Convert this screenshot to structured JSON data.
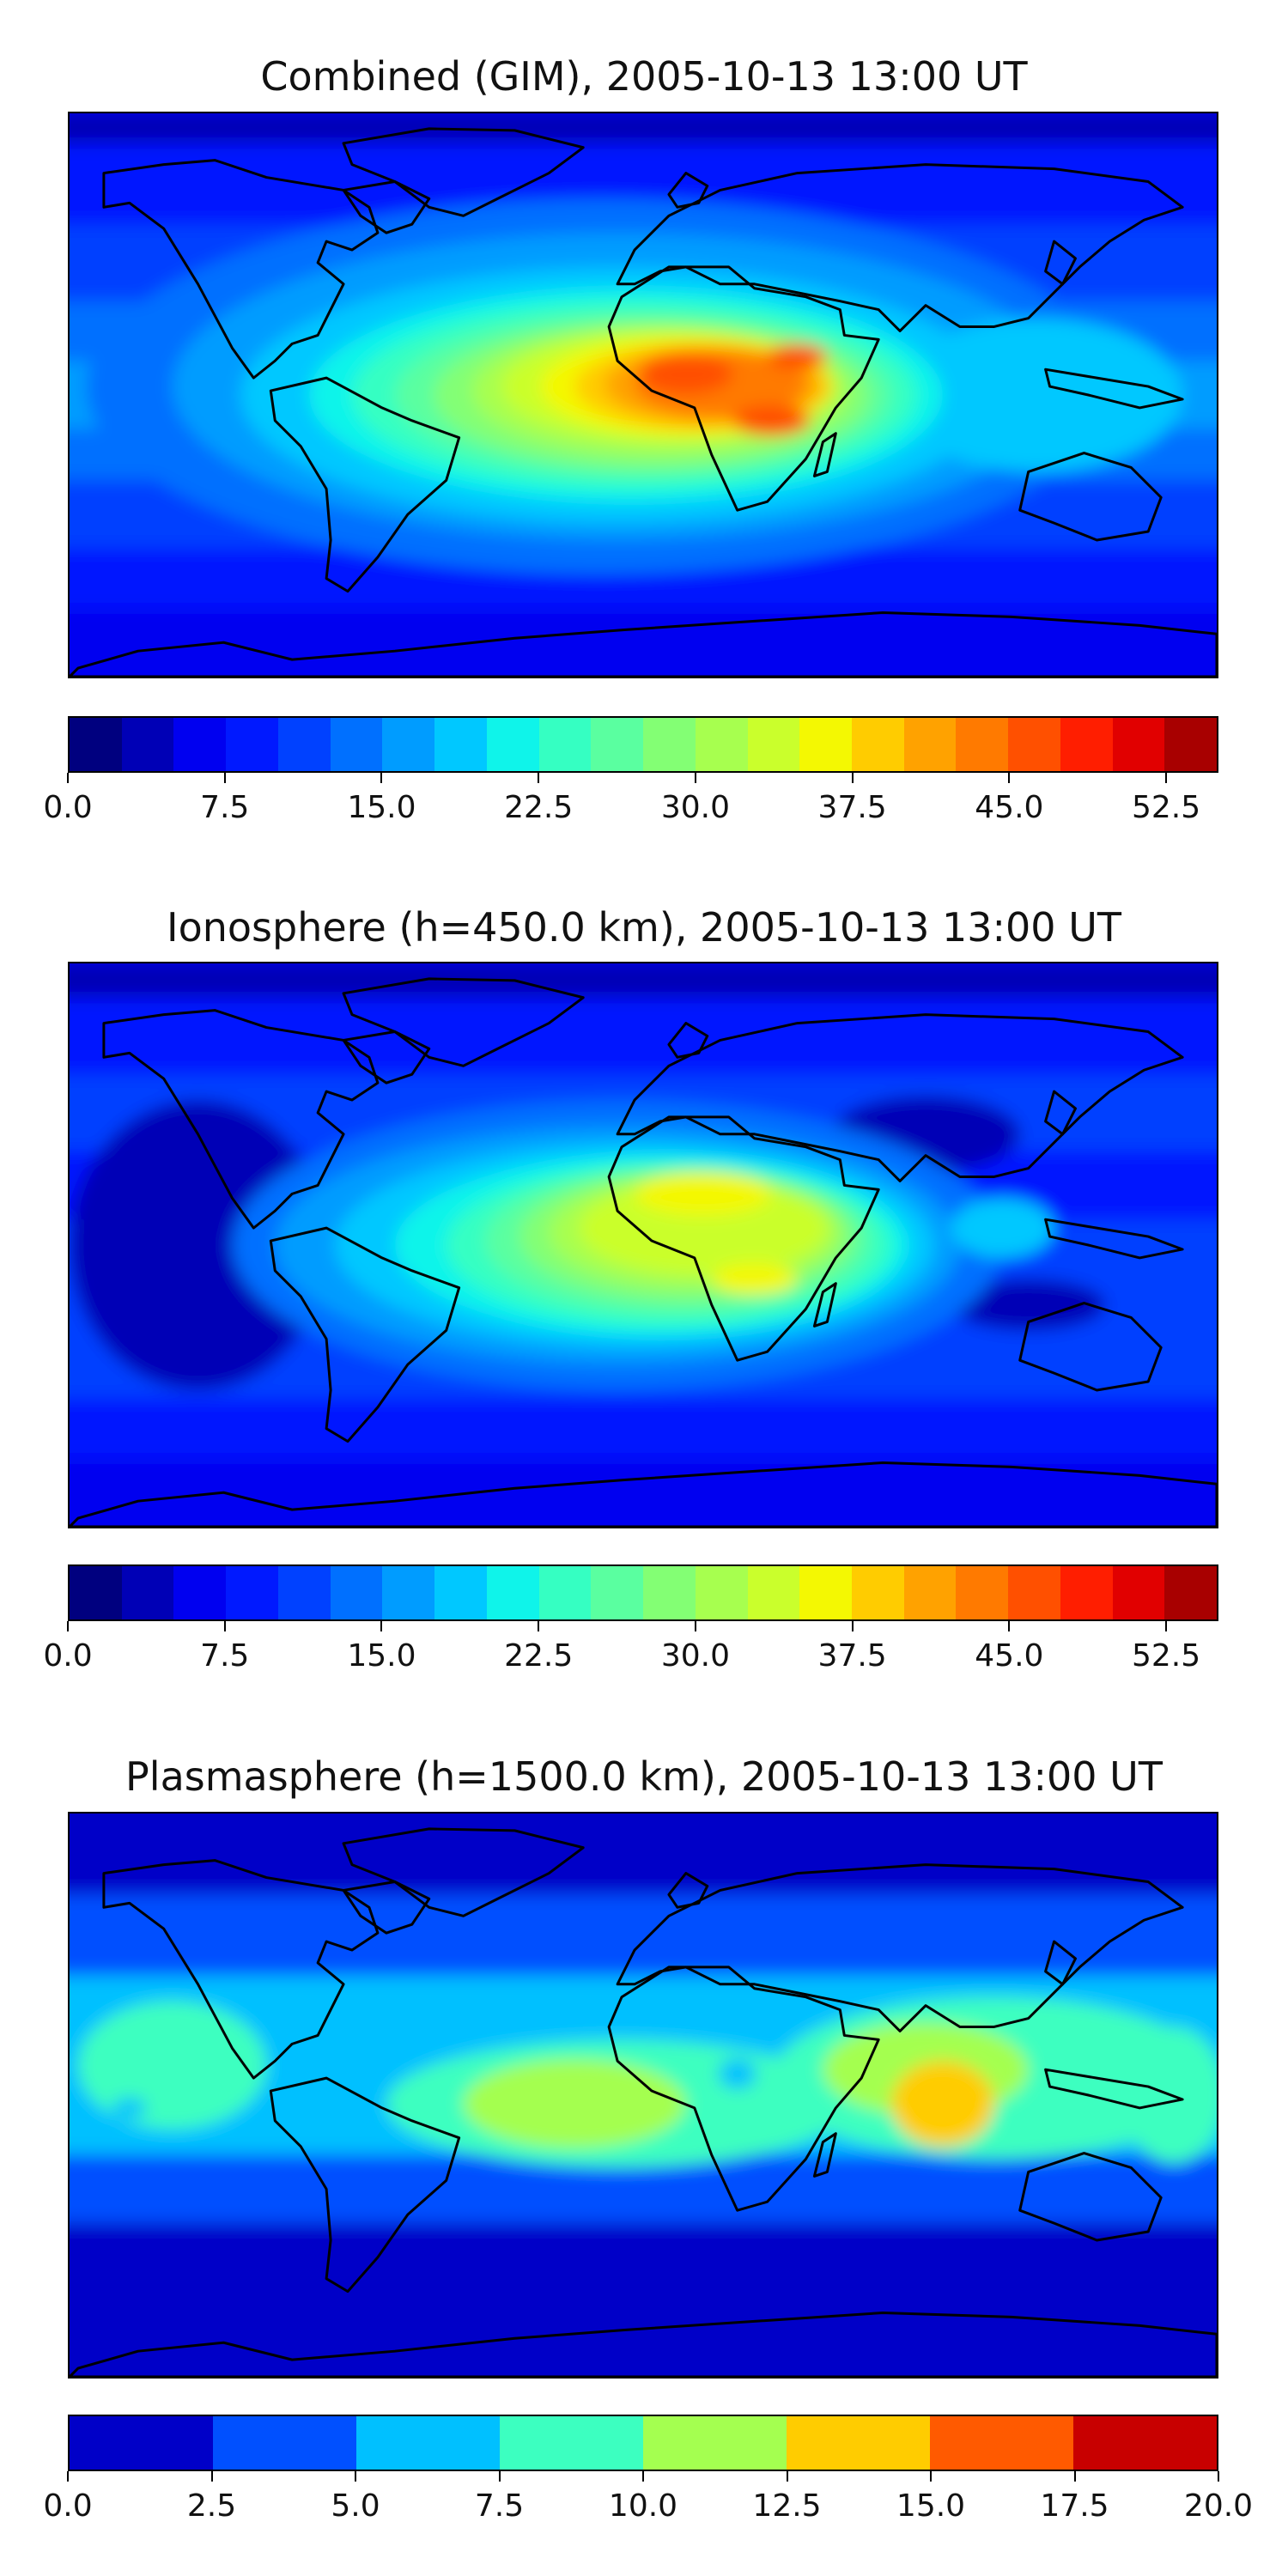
{
  "chart_data": [
    {
      "type": "heatmap",
      "title": "Combined (GIM), 2005-10-13 13:00 UT",
      "value_range": [
        0,
        55
      ],
      "levels": [
        0.0,
        2.5,
        5.0,
        7.5,
        10.0,
        12.5,
        15.0,
        17.5,
        20.0,
        22.5,
        25.0,
        27.5,
        30.0,
        32.5,
        35.0,
        37.5,
        40.0,
        42.5,
        45.0,
        47.5,
        50.0,
        52.5,
        55.0
      ],
      "colorbar_colors": [
        "#00007f",
        "#0000b6",
        "#0000f0",
        "#0019ff",
        "#0041ff",
        "#0070ff",
        "#009cff",
        "#00c8ff",
        "#0ff4ea",
        "#35ffc2",
        "#5affa0",
        "#83ff74",
        "#a7ff4f",
        "#caff2c",
        "#f4f802",
        "#ffcc00",
        "#ffa200",
        "#ff7a00",
        "#ff5000",
        "#ff1e00",
        "#e10000",
        "#a80000"
      ],
      "colorbar_ticks": [
        "0.0",
        "7.5",
        "15.0",
        "22.5",
        "30.0",
        "37.5",
        "45.0",
        "52.5"
      ],
      "colorbar_tick_values": [
        0.0,
        7.5,
        15.0,
        22.5,
        30.0,
        37.5,
        45.0,
        52.5
      ],
      "features": [
        {
          "region": "northern high latitudes",
          "value": 5
        },
        {
          "region": "equatorial Pacific",
          "value": 12
        },
        {
          "region": "South America",
          "value": 27
        },
        {
          "region": "equatorial Atlantic / central Africa",
          "value": 44
        },
        {
          "region": "southern Africa / Madagascar",
          "value": 42
        },
        {
          "region": "India / Southeast Asia",
          "value": 26
        },
        {
          "region": "Australia",
          "value": 16
        },
        {
          "region": "southern high latitudes",
          "value": 4
        }
      ]
    },
    {
      "type": "heatmap",
      "title": "Ionosphere  (h=450.0 km), 2005-10-13 13:00 UT",
      "value_range": [
        0,
        55
      ],
      "levels": [
        0.0,
        2.5,
        5.0,
        7.5,
        10.0,
        12.5,
        15.0,
        17.5,
        20.0,
        22.5,
        25.0,
        27.5,
        30.0,
        32.5,
        35.0,
        37.5,
        40.0,
        42.5,
        45.0,
        47.5,
        50.0,
        52.5,
        55.0
      ],
      "colorbar_colors": [
        "#00007f",
        "#0000b6",
        "#0000f0",
        "#0019ff",
        "#0041ff",
        "#0070ff",
        "#009cff",
        "#00c8ff",
        "#0ff4ea",
        "#35ffc2",
        "#5affa0",
        "#83ff74",
        "#a7ff4f",
        "#caff2c",
        "#f4f802",
        "#ffcc00",
        "#ffa200",
        "#ff7a00",
        "#ff5000",
        "#ff1e00",
        "#e10000",
        "#a80000"
      ],
      "colorbar_ticks": [
        "0.0",
        "7.5",
        "15.0",
        "22.5",
        "30.0",
        "37.5",
        "45.0",
        "52.5"
      ],
      "colorbar_tick_values": [
        0.0,
        7.5,
        15.0,
        22.5,
        30.0,
        37.5,
        45.0,
        52.5
      ],
      "features": [
        {
          "region": "northern high latitudes",
          "value": 3
        },
        {
          "region": "eastern Pacific",
          "value": 2
        },
        {
          "region": "South America",
          "value": 20
        },
        {
          "region": "North Africa / Sahara",
          "value": 34
        },
        {
          "region": "southern Africa",
          "value": 34
        },
        {
          "region": "Southeast Asia",
          "value": 16
        },
        {
          "region": "Australia",
          "value": 5
        },
        {
          "region": "southern high latitudes",
          "value": 3
        }
      ]
    },
    {
      "type": "heatmap",
      "title": "Plasmasphere (h=1500.0 km), 2005-10-13 13:00 UT",
      "value_range": [
        0,
        20
      ],
      "levels": [
        0.0,
        2.5,
        5.0,
        7.5,
        10.0,
        12.5,
        15.0,
        17.5,
        20.0
      ],
      "colorbar_colors": [
        "#0000c8",
        "#0050ff",
        "#00c0ff",
        "#3cffc0",
        "#a4ff50",
        "#ffcc00",
        "#ff5a00",
        "#c80000"
      ],
      "colorbar_ticks": [
        "0.0",
        "2.5",
        "5.0",
        "7.5",
        "10.0",
        "12.5",
        "15.0",
        "17.5",
        "20.0"
      ],
      "colorbar_tick_values": [
        0.0,
        2.5,
        5.0,
        7.5,
        10.0,
        12.5,
        15.0,
        17.5,
        20.0
      ],
      "features": [
        {
          "region": "northern high latitudes",
          "value": 1.5
        },
        {
          "region": "northern mid-latitude band",
          "value": 4
        },
        {
          "region": "low-latitude band",
          "value": 6
        },
        {
          "region": "tropical Atlantic",
          "value": 11
        },
        {
          "region": "central Pacific",
          "value": 8.5
        },
        {
          "region": "India / Bay of Bengal",
          "value": 13
        },
        {
          "region": "southern mid-latitude band",
          "value": 4
        },
        {
          "region": "southern high latitudes",
          "value": 1.5
        }
      ]
    }
  ]
}
